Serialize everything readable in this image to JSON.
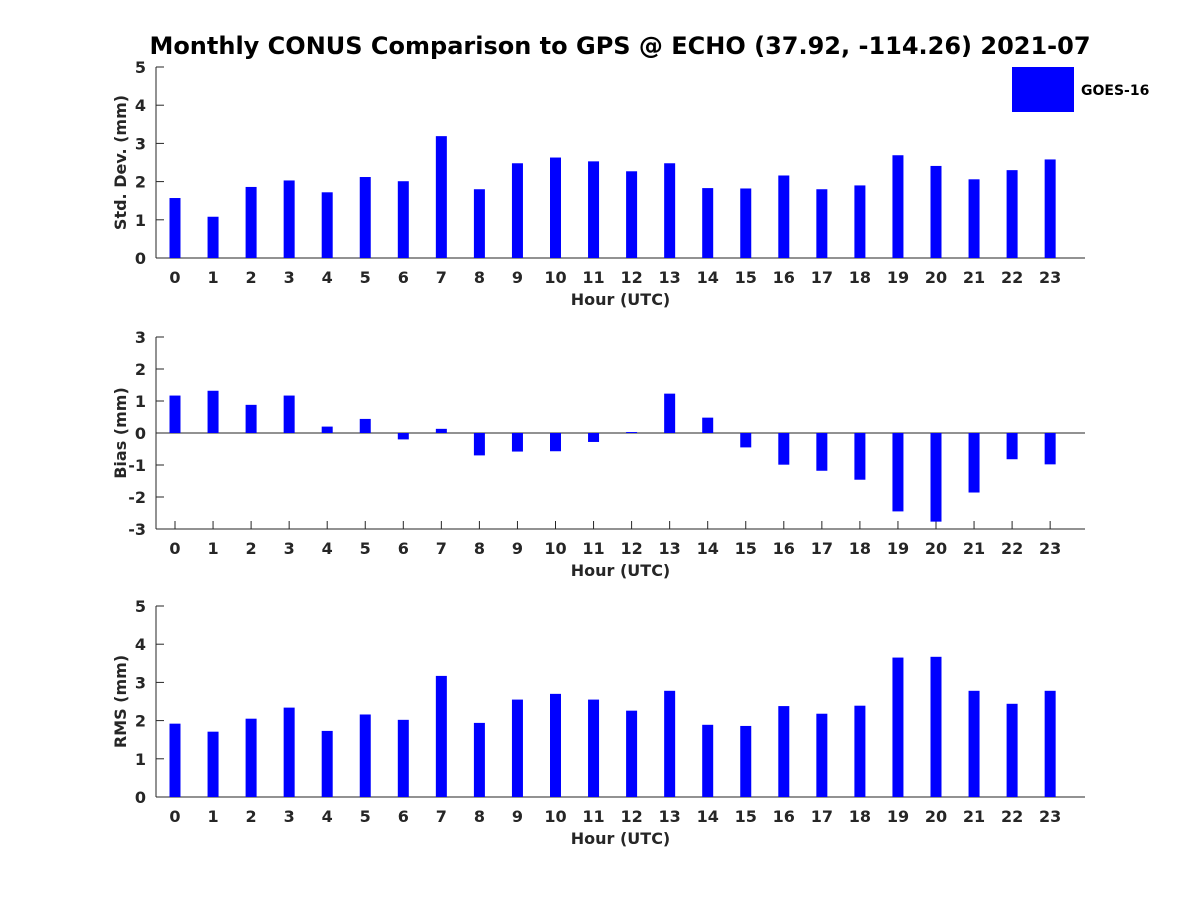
{
  "title": "Monthly CONUS Comparison to GPS @ ECHO (37.92, -114.26) 2021-07",
  "legend": {
    "label": "GOES-16",
    "color": "#0000ff"
  },
  "chart_data": [
    {
      "type": "bar",
      "xlabel": "Hour (UTC)",
      "ylabel": "Std. Dev. (mm)",
      "ylim": [
        0,
        5
      ],
      "yticks": [
        "0",
        "1",
        "2",
        "3",
        "4",
        "5"
      ],
      "categories": [
        "0",
        "1",
        "2",
        "3",
        "4",
        "5",
        "6",
        "7",
        "8",
        "9",
        "10",
        "11",
        "12",
        "13",
        "14",
        "15",
        "16",
        "17",
        "18",
        "19",
        "20",
        "21",
        "22",
        "23"
      ],
      "series": [
        {
          "name": "GOES-16",
          "values": [
            1.57,
            1.08,
            1.86,
            2.03,
            1.72,
            2.12,
            2.01,
            3.19,
            1.8,
            2.48,
            2.63,
            2.53,
            2.27,
            2.48,
            1.83,
            1.82,
            2.16,
            1.8,
            1.9,
            2.69,
            2.41,
            2.06,
            2.3,
            2.58
          ]
        }
      ]
    },
    {
      "type": "bar",
      "xlabel": "Hour (UTC)",
      "ylabel": "Bias (mm)",
      "ylim": [
        -3,
        3
      ],
      "yticks": [
        "-3",
        "-2",
        "-1",
        "0",
        "1",
        "2",
        "3"
      ],
      "categories": [
        "0",
        "1",
        "2",
        "3",
        "4",
        "5",
        "6",
        "7",
        "8",
        "9",
        "10",
        "11",
        "12",
        "13",
        "14",
        "15",
        "16",
        "17",
        "18",
        "19",
        "20",
        "21",
        "22",
        "23"
      ],
      "series": [
        {
          "name": "GOES-16",
          "values": [
            1.17,
            1.32,
            0.88,
            1.17,
            0.2,
            0.44,
            -0.2,
            0.13,
            -0.7,
            -0.58,
            -0.57,
            -0.28,
            0.03,
            1.23,
            0.48,
            -0.45,
            -0.99,
            -1.18,
            -1.46,
            -2.45,
            -2.77,
            -1.86,
            -0.82,
            -0.98
          ]
        }
      ]
    },
    {
      "type": "bar",
      "xlabel": "Hour (UTC)",
      "ylabel": "RMS (mm)",
      "ylim": [
        0,
        5
      ],
      "yticks": [
        "0",
        "1",
        "2",
        "3",
        "4",
        "5"
      ],
      "categories": [
        "0",
        "1",
        "2",
        "3",
        "4",
        "5",
        "6",
        "7",
        "8",
        "9",
        "10",
        "11",
        "12",
        "13",
        "14",
        "15",
        "16",
        "17",
        "18",
        "19",
        "20",
        "21",
        "22",
        "23"
      ],
      "series": [
        {
          "name": "GOES-16",
          "values": [
            1.92,
            1.71,
            2.05,
            2.34,
            1.73,
            2.16,
            2.02,
            3.17,
            1.94,
            2.55,
            2.7,
            2.55,
            2.26,
            2.78,
            1.89,
            1.86,
            2.38,
            2.18,
            2.39,
            3.65,
            3.67,
            2.78,
            2.44,
            2.78
          ]
        }
      ]
    }
  ]
}
